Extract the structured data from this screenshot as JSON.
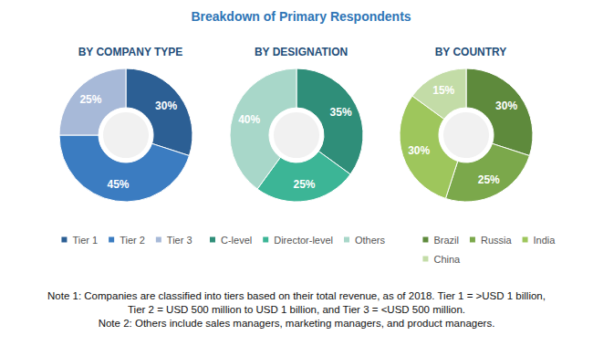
{
  "title": "Breakdown of Primary Respondents",
  "notes": [
    "Note 1: Companies are classified into tiers based on their total revenue, as of 2018. Tier 1 = >USD 1 billion,",
    "Tier 2 = USD 500 million to USD 1 billion, and Tier 3 = <USD 500 million.",
    "Note 2: Others include sales managers, marketing managers, and product managers."
  ],
  "chart_data": [
    {
      "type": "pie",
      "title": "BY COMPANY TYPE",
      "categories": [
        "Tier 1",
        "Tier 2",
        "Tier 3"
      ],
      "values": [
        30,
        45,
        25
      ],
      "value_labels": [
        "30%",
        "45%",
        "25%"
      ],
      "colors": [
        "#2c5f94",
        "#3b7cc1",
        "#a7b9d8"
      ],
      "data_labels": true,
      "legend": "bottom"
    },
    {
      "type": "pie",
      "title": "BY DESIGNATION",
      "categories": [
        "C-level",
        "Director-level",
        "Others"
      ],
      "values": [
        35,
        25,
        40
      ],
      "value_labels": [
        "35%",
        "25%",
        "40%"
      ],
      "colors": [
        "#2f8e79",
        "#3cb596",
        "#a8d7c9"
      ],
      "data_labels": true,
      "legend": "bottom"
    },
    {
      "type": "pie",
      "title": "BY COUNTRY",
      "categories": [
        "Brazil",
        "Russia",
        "India",
        "China"
      ],
      "values": [
        30,
        25,
        30,
        15
      ],
      "value_labels": [
        "30%",
        "25%",
        "30%",
        "15%"
      ],
      "colors": [
        "#5e8a3c",
        "#7ba84b",
        "#9ec65c",
        "#c3dca7"
      ],
      "data_labels": true,
      "legend": "bottom"
    }
  ]
}
